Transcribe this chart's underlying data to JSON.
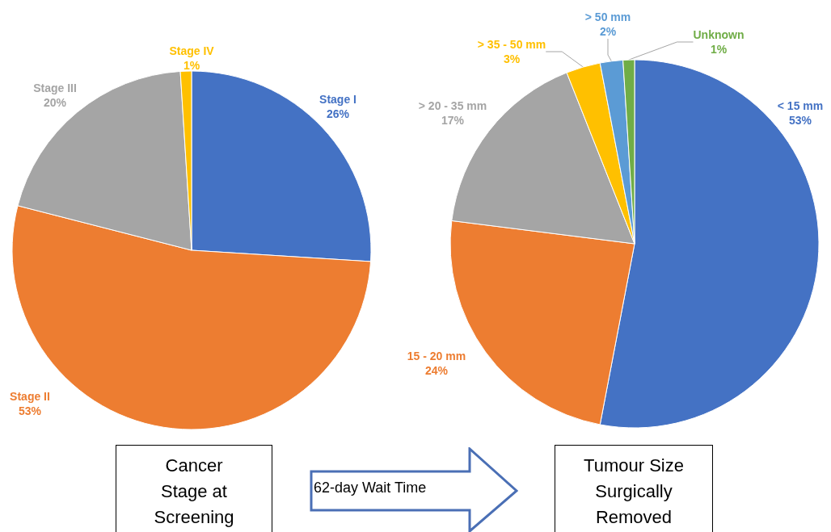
{
  "chart_data": [
    {
      "type": "pie",
      "title": "Cancer Stage at Screening",
      "categories": [
        "Stage I",
        "Stage II",
        "Stage III",
        "Stage IV"
      ],
      "values": [
        26,
        53,
        20,
        1
      ],
      "value_labels": [
        "26%",
        "53%",
        "20%",
        "1%"
      ],
      "colors": [
        "#4472c4",
        "#ed7d31",
        "#a5a5a5",
        "#ffc000"
      ],
      "annotations": [
        "62-day Wait Time"
      ]
    },
    {
      "type": "pie",
      "title": "Tumour Size Surgically Removed",
      "categories": [
        "< 15 mm",
        "15 - 20 mm",
        "> 20 - 35 mm",
        "> 35 - 50 mm",
        "> 50 mm",
        "Unknown"
      ],
      "values": [
        53,
        24,
        17,
        3,
        2,
        1
      ],
      "value_labels": [
        "53%",
        "24%",
        "17%",
        "3%",
        "2%",
        "1%"
      ],
      "colors": [
        "#4472c4",
        "#ed7d31",
        "#a5a5a5",
        "#ffc000",
        "#5b9bd5",
        "#70ad47"
      ]
    }
  ]
}
